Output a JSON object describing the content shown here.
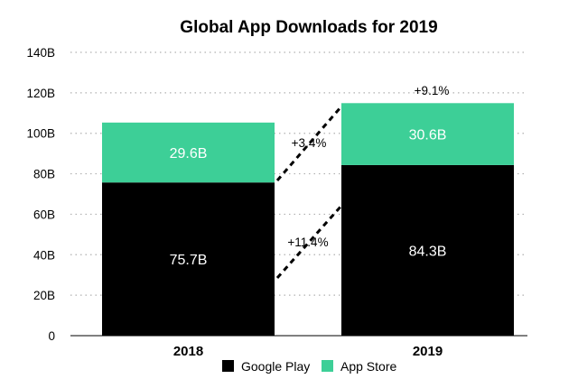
{
  "chart_data": {
    "type": "bar",
    "stacked": true,
    "title": "Global App Downloads for 2019",
    "xlabel": "",
    "ylabel": "",
    "categories": [
      "2018",
      "2019"
    ],
    "series": [
      {
        "name": "Google Play",
        "values": [
          75.7,
          84.3
        ],
        "labels": [
          "75.7B",
          "84.3B"
        ],
        "color": "#000000"
      },
      {
        "name": "App Store",
        "values": [
          29.6,
          30.6
        ],
        "labels": [
          "29.6B",
          "30.6B"
        ],
        "color": "#3dcf97"
      }
    ],
    "ylim": [
      0,
      140
    ],
    "yticks": [
      0,
      20,
      40,
      60,
      80,
      100,
      120,
      140
    ],
    "ytick_labels": [
      "0",
      "20B",
      "40B",
      "60B",
      "80B",
      "100B",
      "120B",
      "140B"
    ],
    "grid": true,
    "legend_position": "bottom",
    "annotations": {
      "total_growth": "+9.1%",
      "app_store_growth": "+3.4%",
      "google_play_growth": "+11.4%"
    }
  }
}
